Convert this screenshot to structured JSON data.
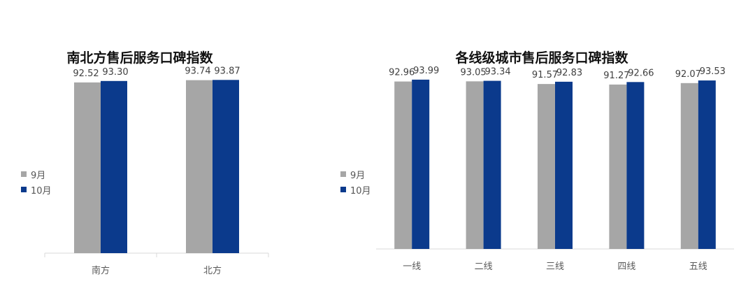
{
  "colors": {
    "sep": "#a6a6a6",
    "oct": "#0b3a8c",
    "axis": "#d9d9d9",
    "label": "#404040"
  },
  "chart_data": [
    {
      "type": "bar",
      "title": "南北方售后服务口碑指数",
      "categories": [
        "南方",
        "北方"
      ],
      "series": [
        {
          "name": "9月",
          "values": [
            92.52,
            93.74
          ]
        },
        {
          "name": "10月",
          "values": [
            93.3,
            93.87
          ]
        }
      ],
      "value_labels": [
        [
          "92.52",
          "93.74"
        ],
        [
          "93.30",
          "93.87"
        ]
      ],
      "ylim": [
        0,
        100
      ],
      "grid": false,
      "legend_position": "left"
    },
    {
      "type": "bar",
      "title": "各线级城市售后服务口碑指数",
      "categories": [
        "一线",
        "二线",
        "三线",
        "四线",
        "五线"
      ],
      "series": [
        {
          "name": "9月",
          "values": [
            92.96,
            93.05,
            91.57,
            91.27,
            92.07
          ]
        },
        {
          "name": "10月",
          "values": [
            93.99,
            93.34,
            92.83,
            92.66,
            93.53
          ]
        }
      ],
      "value_labels": [
        [
          "92.96",
          "93.05",
          "91.57",
          "91.27",
          "92.07"
        ],
        [
          "93.99",
          "93.34",
          "92.83",
          "92.66",
          "93.53"
        ]
      ],
      "ylim": [
        0,
        100
      ],
      "grid": false,
      "legend_position": "left"
    }
  ]
}
